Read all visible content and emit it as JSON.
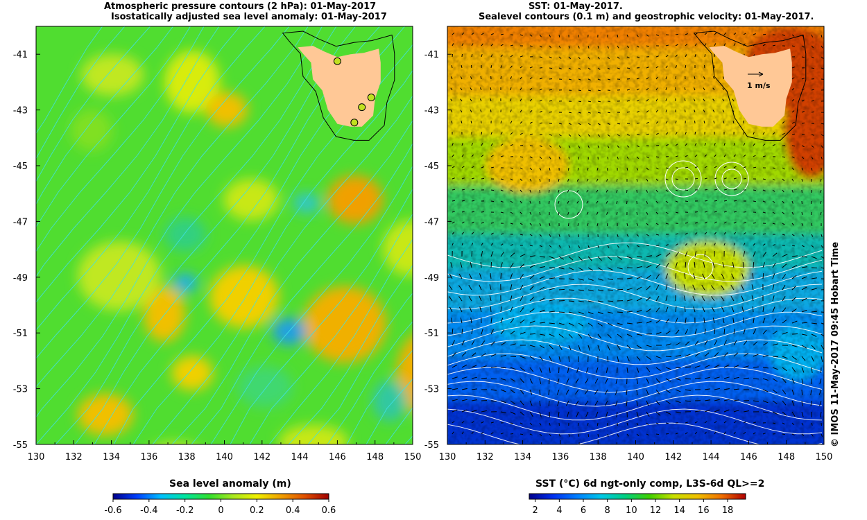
{
  "left_panel": {
    "title_line1": "Atmospheric pressure contours (2 hPa): 01-May-2017",
    "title_line2": "Isostatically adjusted sea level anomaly: 01-May-2017",
    "colorbar_label": "Sea level anomaly (m)",
    "colorbar_ticks": [
      "-0.6",
      "-0.4",
      "-0.2",
      "0",
      "0.2",
      "0.4",
      "0.6"
    ],
    "colorbar_range": [
      -0.6,
      0.6
    ]
  },
  "right_panel": {
    "title_line1": "SST: 01-May-2017.",
    "title_line2": "Sealevel contours (0.1 m) and geostrophic velocity: 01-May-2017.",
    "colorbar_label": "SST (°C) 6d ngt-only comp, L3S-6d QL>=2",
    "colorbar_ticks": [
      "2",
      "4",
      "6",
      "8",
      "10",
      "12",
      "14",
      "16",
      "18"
    ],
    "colorbar_range": [
      1.5,
      19.5
    ],
    "velocity_scale_label": "1 m/s"
  },
  "axes": {
    "lon_ticks": [
      "130",
      "132",
      "134",
      "136",
      "138",
      "140",
      "142",
      "144",
      "146",
      "148",
      "150"
    ],
    "lat_ticks": [
      "-41",
      "-43",
      "-45",
      "-47",
      "-49",
      "-51",
      "-53",
      "-55"
    ],
    "lon_range": [
      130,
      150
    ],
    "lat_range": [
      -55,
      -40
    ]
  },
  "markers": [
    {
      "lon": 146.0,
      "lat": -41.25
    },
    {
      "lon": 147.8,
      "lat": -42.55
    },
    {
      "lon": 147.3,
      "lat": -42.9
    },
    {
      "lon": 146.9,
      "lat": -43.45
    }
  ],
  "credit": "© IMOS 11-May-2017 09:45 Hobart Time",
  "colors": {
    "land": "#ffc896",
    "sla_colormap": [
      "#00008c",
      "#0040ff",
      "#00c0ff",
      "#00e6a0",
      "#30e030",
      "#a8e820",
      "#f0f000",
      "#f0a000",
      "#e05000",
      "#a00000"
    ],
    "sst_colormap": [
      "#00008c",
      "#0030f0",
      "#0080ff",
      "#00c8e8",
      "#00d080",
      "#40d000",
      "#c8e000",
      "#f0c000",
      "#f07000",
      "#b00000"
    ],
    "pressure_contours": "#40e0e8",
    "sea_level_contours": "#ffffff"
  }
}
